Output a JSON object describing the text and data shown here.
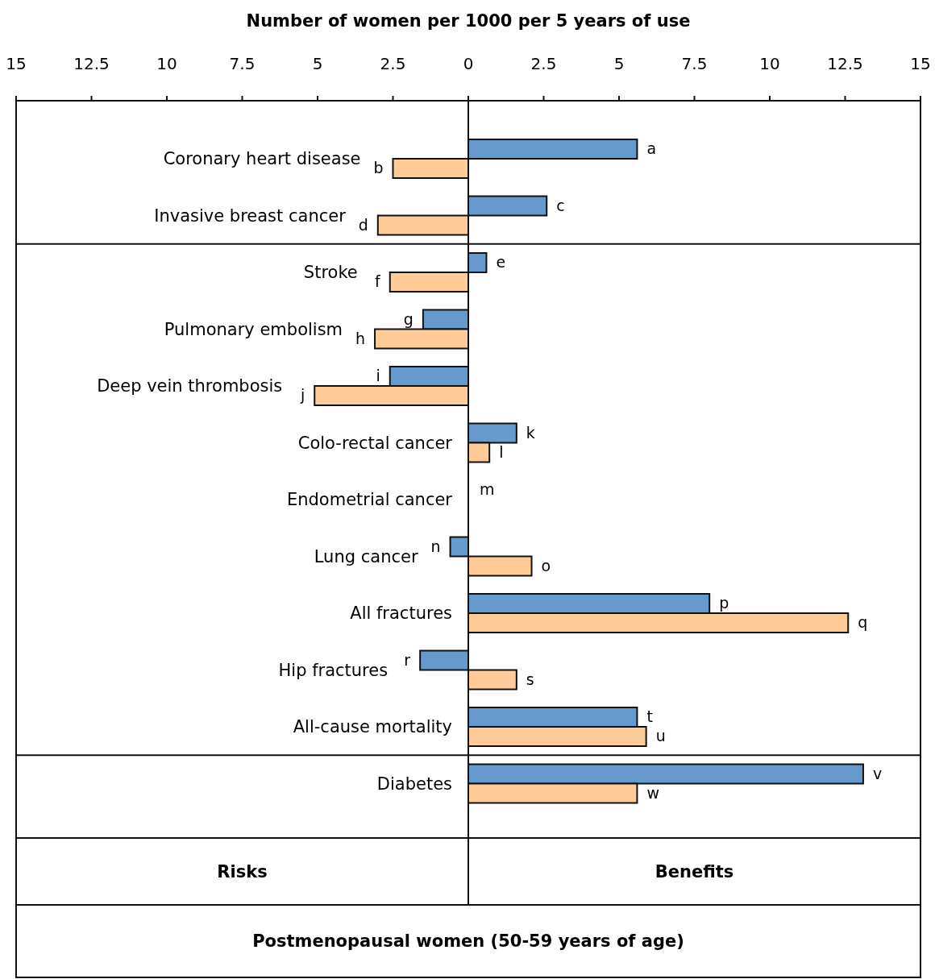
{
  "chart_data": {
    "type": "bar",
    "orientation": "horizontal",
    "xlabel": "Number of women per 1000 per 5 years of use",
    "categories": [
      "Coronary heart disease",
      "Invasive breast cancer",
      "Stroke",
      "Pulmonary embolism",
      "Deep vein thrombosis",
      "Colo-rectal cancer",
      "Endometrial cancer",
      "Lung cancer",
      "All fractures",
      "Hip fractures",
      "All-cause mortality",
      "Diabetes"
    ],
    "series": [
      {
        "color": "#6699cc",
        "values": [
          5.6,
          2.6,
          0.6,
          -1.5,
          -2.6,
          1.6,
          null,
          -0.6,
          8.0,
          -1.6,
          5.6,
          13.1
        ],
        "value_labels": [
          "a",
          "c",
          "e",
          "g",
          "i",
          "k",
          "m",
          "n",
          "p",
          "r",
          "t",
          "v"
        ]
      },
      {
        "color": "#ffcc99",
        "values": [
          -2.5,
          -3.0,
          -2.6,
          -3.1,
          -5.1,
          0.7,
          null,
          2.1,
          12.6,
          1.6,
          5.9,
          5.6
        ],
        "value_labels": [
          "b",
          "d",
          "f",
          "h",
          "j",
          "l",
          null,
          "o",
          "q",
          "s",
          "u",
          "w"
        ]
      }
    ],
    "xlim": [
      -15,
      15
    ],
    "xticks": [
      {
        "value": -15,
        "label": "15"
      },
      {
        "value": -12.5,
        "label": "12.5"
      },
      {
        "value": -10,
        "label": "10"
      },
      {
        "value": -7.5,
        "label": "7.5"
      },
      {
        "value": -5,
        "label": "5"
      },
      {
        "value": -2.5,
        "label": "2.5"
      },
      0,
      2.5,
      5,
      7.5,
      10,
      12.5,
      15
    ],
    "annotations": [
      "Risks",
      "Benefits",
      "Postmenopausal women (50-59 years of age)"
    ],
    "grid": false
  }
}
